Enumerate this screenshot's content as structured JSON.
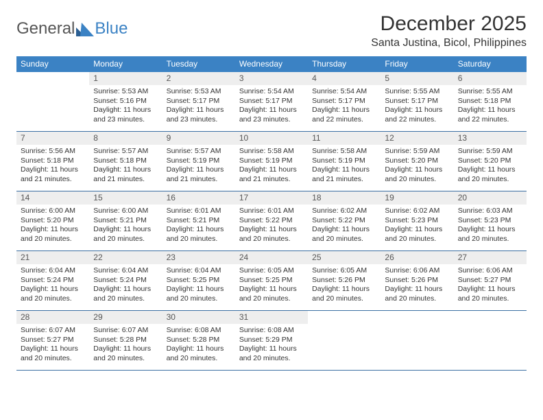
{
  "brand": {
    "part1": "General",
    "part2": "Blue"
  },
  "title": "December 2025",
  "location": "Santa Justina, Bicol, Philippines",
  "colors": {
    "header_bg": "#3b82c4",
    "header_text": "#ffffff",
    "daynum_bg": "#eeeeee",
    "rule": "#3b6fa3",
    "text": "#333333",
    "page_bg": "#ffffff"
  },
  "days_of_week": [
    "Sunday",
    "Monday",
    "Tuesday",
    "Wednesday",
    "Thursday",
    "Friday",
    "Saturday"
  ],
  "weeks": [
    [
      {
        "n": "",
        "sunrise": "",
        "sunset": "",
        "daylight": ""
      },
      {
        "n": "1",
        "sunrise": "Sunrise: 5:53 AM",
        "sunset": "Sunset: 5:16 PM",
        "daylight": "Daylight: 11 hours and 23 minutes."
      },
      {
        "n": "2",
        "sunrise": "Sunrise: 5:53 AM",
        "sunset": "Sunset: 5:17 PM",
        "daylight": "Daylight: 11 hours and 23 minutes."
      },
      {
        "n": "3",
        "sunrise": "Sunrise: 5:54 AM",
        "sunset": "Sunset: 5:17 PM",
        "daylight": "Daylight: 11 hours and 23 minutes."
      },
      {
        "n": "4",
        "sunrise": "Sunrise: 5:54 AM",
        "sunset": "Sunset: 5:17 PM",
        "daylight": "Daylight: 11 hours and 22 minutes."
      },
      {
        "n": "5",
        "sunrise": "Sunrise: 5:55 AM",
        "sunset": "Sunset: 5:17 PM",
        "daylight": "Daylight: 11 hours and 22 minutes."
      },
      {
        "n": "6",
        "sunrise": "Sunrise: 5:55 AM",
        "sunset": "Sunset: 5:18 PM",
        "daylight": "Daylight: 11 hours and 22 minutes."
      }
    ],
    [
      {
        "n": "7",
        "sunrise": "Sunrise: 5:56 AM",
        "sunset": "Sunset: 5:18 PM",
        "daylight": "Daylight: 11 hours and 21 minutes."
      },
      {
        "n": "8",
        "sunrise": "Sunrise: 5:57 AM",
        "sunset": "Sunset: 5:18 PM",
        "daylight": "Daylight: 11 hours and 21 minutes."
      },
      {
        "n": "9",
        "sunrise": "Sunrise: 5:57 AM",
        "sunset": "Sunset: 5:19 PM",
        "daylight": "Daylight: 11 hours and 21 minutes."
      },
      {
        "n": "10",
        "sunrise": "Sunrise: 5:58 AM",
        "sunset": "Sunset: 5:19 PM",
        "daylight": "Daylight: 11 hours and 21 minutes."
      },
      {
        "n": "11",
        "sunrise": "Sunrise: 5:58 AM",
        "sunset": "Sunset: 5:19 PM",
        "daylight": "Daylight: 11 hours and 21 minutes."
      },
      {
        "n": "12",
        "sunrise": "Sunrise: 5:59 AM",
        "sunset": "Sunset: 5:20 PM",
        "daylight": "Daylight: 11 hours and 20 minutes."
      },
      {
        "n": "13",
        "sunrise": "Sunrise: 5:59 AM",
        "sunset": "Sunset: 5:20 PM",
        "daylight": "Daylight: 11 hours and 20 minutes."
      }
    ],
    [
      {
        "n": "14",
        "sunrise": "Sunrise: 6:00 AM",
        "sunset": "Sunset: 5:20 PM",
        "daylight": "Daylight: 11 hours and 20 minutes."
      },
      {
        "n": "15",
        "sunrise": "Sunrise: 6:00 AM",
        "sunset": "Sunset: 5:21 PM",
        "daylight": "Daylight: 11 hours and 20 minutes."
      },
      {
        "n": "16",
        "sunrise": "Sunrise: 6:01 AM",
        "sunset": "Sunset: 5:21 PM",
        "daylight": "Daylight: 11 hours and 20 minutes."
      },
      {
        "n": "17",
        "sunrise": "Sunrise: 6:01 AM",
        "sunset": "Sunset: 5:22 PM",
        "daylight": "Daylight: 11 hours and 20 minutes."
      },
      {
        "n": "18",
        "sunrise": "Sunrise: 6:02 AM",
        "sunset": "Sunset: 5:22 PM",
        "daylight": "Daylight: 11 hours and 20 minutes."
      },
      {
        "n": "19",
        "sunrise": "Sunrise: 6:02 AM",
        "sunset": "Sunset: 5:23 PM",
        "daylight": "Daylight: 11 hours and 20 minutes."
      },
      {
        "n": "20",
        "sunrise": "Sunrise: 6:03 AM",
        "sunset": "Sunset: 5:23 PM",
        "daylight": "Daylight: 11 hours and 20 minutes."
      }
    ],
    [
      {
        "n": "21",
        "sunrise": "Sunrise: 6:04 AM",
        "sunset": "Sunset: 5:24 PM",
        "daylight": "Daylight: 11 hours and 20 minutes."
      },
      {
        "n": "22",
        "sunrise": "Sunrise: 6:04 AM",
        "sunset": "Sunset: 5:24 PM",
        "daylight": "Daylight: 11 hours and 20 minutes."
      },
      {
        "n": "23",
        "sunrise": "Sunrise: 6:04 AM",
        "sunset": "Sunset: 5:25 PM",
        "daylight": "Daylight: 11 hours and 20 minutes."
      },
      {
        "n": "24",
        "sunrise": "Sunrise: 6:05 AM",
        "sunset": "Sunset: 5:25 PM",
        "daylight": "Daylight: 11 hours and 20 minutes."
      },
      {
        "n": "25",
        "sunrise": "Sunrise: 6:05 AM",
        "sunset": "Sunset: 5:26 PM",
        "daylight": "Daylight: 11 hours and 20 minutes."
      },
      {
        "n": "26",
        "sunrise": "Sunrise: 6:06 AM",
        "sunset": "Sunset: 5:26 PM",
        "daylight": "Daylight: 11 hours and 20 minutes."
      },
      {
        "n": "27",
        "sunrise": "Sunrise: 6:06 AM",
        "sunset": "Sunset: 5:27 PM",
        "daylight": "Daylight: 11 hours and 20 minutes."
      }
    ],
    [
      {
        "n": "28",
        "sunrise": "Sunrise: 6:07 AM",
        "sunset": "Sunset: 5:27 PM",
        "daylight": "Daylight: 11 hours and 20 minutes."
      },
      {
        "n": "29",
        "sunrise": "Sunrise: 6:07 AM",
        "sunset": "Sunset: 5:28 PM",
        "daylight": "Daylight: 11 hours and 20 minutes."
      },
      {
        "n": "30",
        "sunrise": "Sunrise: 6:08 AM",
        "sunset": "Sunset: 5:28 PM",
        "daylight": "Daylight: 11 hours and 20 minutes."
      },
      {
        "n": "31",
        "sunrise": "Sunrise: 6:08 AM",
        "sunset": "Sunset: 5:29 PM",
        "daylight": "Daylight: 11 hours and 20 minutes."
      },
      {
        "n": "",
        "sunrise": "",
        "sunset": "",
        "daylight": ""
      },
      {
        "n": "",
        "sunrise": "",
        "sunset": "",
        "daylight": ""
      },
      {
        "n": "",
        "sunrise": "",
        "sunset": "",
        "daylight": ""
      }
    ]
  ]
}
